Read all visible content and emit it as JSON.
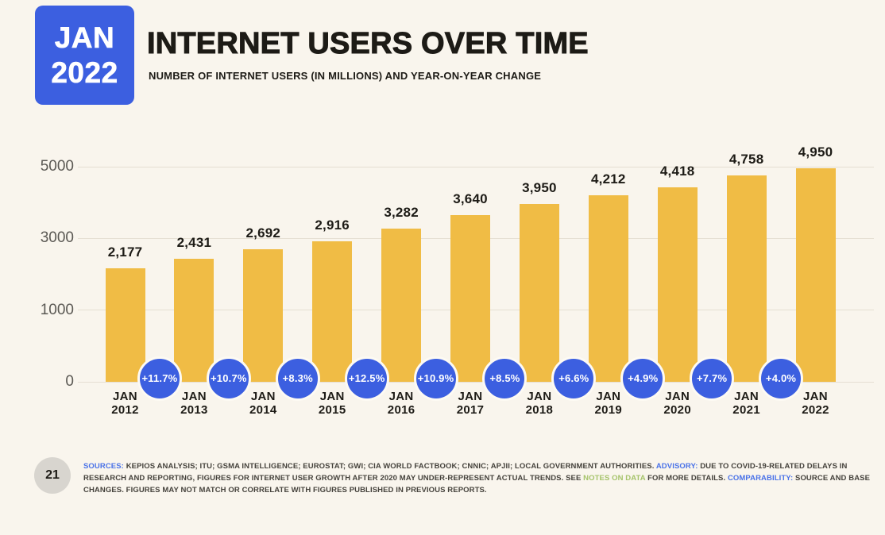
{
  "page": {
    "badge": {
      "line1": "JAN",
      "line2": "2022"
    },
    "title": "INTERNET USERS OVER TIME",
    "subtitle": "NUMBER OF INTERNET USERS (IN MILLIONS) AND YEAR-ON-YEAR CHANGE"
  },
  "colors": {
    "background": "#f9f5ed",
    "accent_blue": "#3c5fe0",
    "bar_gold": "#f0bc45",
    "grid": "#e5dfd3",
    "text_dark": "#1d1b16",
    "axis_label": "#5b5954",
    "footer_text": "#45423c",
    "footer_blue": "#4a72e8",
    "footer_green": "#a5c36a",
    "footer_circle": "#d8d5cf"
  },
  "chart_data": {
    "type": "bar",
    "title": "INTERNET USERS OVER TIME",
    "subtitle": "NUMBER OF INTERNET USERS (IN MILLIONS) AND YEAR-ON-YEAR CHANGE",
    "categories": [
      "JAN 2012",
      "JAN 2013",
      "JAN 2014",
      "JAN 2015",
      "JAN 2016",
      "JAN 2017",
      "JAN 2018",
      "JAN 2019",
      "JAN 2020",
      "JAN 2021",
      "JAN 2022"
    ],
    "values": [
      2177,
      2431,
      2692,
      2916,
      3282,
      3640,
      3950,
      4212,
      4418,
      4758,
      4950
    ],
    "value_labels": [
      "2,177",
      "2,431",
      "2,692",
      "2,916",
      "3,282",
      "3,640",
      "3,950",
      "4,212",
      "4,418",
      "4,758",
      "4,950"
    ],
    "yoy_changes": [
      "+11.7%",
      "+10.7%",
      "+8.3%",
      "+12.5%",
      "+10.9%",
      "+8.5%",
      "+6.6%",
      "+4.9%",
      "+7.7%",
      "+4.0%"
    ],
    "y_ticks": [
      0,
      1000,
      3000,
      5000
    ],
    "y_tick_labels": [
      "0",
      "1000",
      "3000",
      "5000"
    ],
    "ylim": [
      0,
      5000
    ],
    "xlabel": "",
    "ylabel": "",
    "grid": true,
    "legend": false
  },
  "footer": {
    "page_number": "21",
    "lines": [
      [
        {
          "t": "SOURCES:",
          "color": "footer_blue"
        },
        {
          "t": " KEPIOS ANALYSIS; ITU; GSMA INTELLIGENCE; EUROSTAT; GWI; CIA WORLD FACTBOOK; CNNIC; APJII; LOCAL GOVERNMENT AUTHORITIES. ",
          "color": "footer_text"
        },
        {
          "t": "ADVISORY:",
          "color": "footer_blue"
        },
        {
          "t": " DUE TO COVID-19-RELATED DELAYS IN",
          "color": "footer_text"
        }
      ],
      [
        {
          "t": "RESEARCH AND REPORTING, FIGURES FOR INTERNET USER GROWTH AFTER 2020 MAY UNDER-REPRESENT ACTUAL TRENDS. SEE ",
          "color": "footer_text"
        },
        {
          "t": "NOTES ON DATA",
          "color": "footer_green"
        },
        {
          "t": " FOR MORE DETAILS. ",
          "color": "footer_text"
        },
        {
          "t": "COMPARABILITY:",
          "color": "footer_blue"
        },
        {
          "t": " SOURCE AND BASE",
          "color": "footer_text"
        }
      ],
      [
        {
          "t": "CHANGES. FIGURES MAY NOT MATCH OR CORRELATE WITH FIGURES PUBLISHED IN PREVIOUS REPORTS.",
          "color": "footer_text"
        }
      ]
    ]
  }
}
